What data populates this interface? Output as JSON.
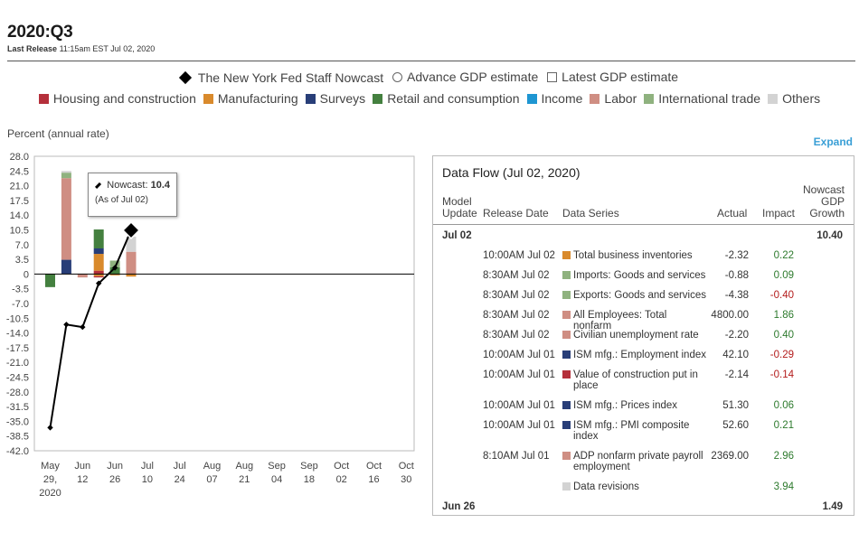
{
  "header": {
    "title": "2020:Q3",
    "release_label": "Last Release",
    "release_time": "11:15am EST Jul 02, 2020"
  },
  "legend_primary": [
    {
      "label": "The New York Fed Staff Nowcast",
      "icon": "diamond-icon"
    },
    {
      "label": "Advance GDP estimate",
      "icon": "circle-icon"
    },
    {
      "label": "Latest GDP estimate",
      "icon": "square-icon"
    }
  ],
  "legend_categories": [
    {
      "label": "Housing and construction",
      "color": "#b5303b"
    },
    {
      "label": "Manufacturing",
      "color": "#d98a2c"
    },
    {
      "label": "Surveys",
      "color": "#283e78"
    },
    {
      "label": "Retail and consumption",
      "color": "#44803f"
    },
    {
      "label": "Income",
      "color": "#1e96d2"
    },
    {
      "label": "Labor",
      "color": "#cf8e83"
    },
    {
      "label": "International trade",
      "color": "#8fb27f"
    },
    {
      "label": "Others",
      "color": "#d3d3d3"
    }
  ],
  "y_axis_label": "Percent (annual rate)",
  "expand_label": "Expand",
  "tooltip": {
    "label": "Nowcast:",
    "value": "10.4",
    "as_of": "(As of Jul 02)"
  },
  "chart_data": {
    "type": "bar",
    "title": "",
    "ylabel": "Percent (annual rate)",
    "ylim": [
      -42,
      28
    ],
    "y_ticks": [
      "28.0",
      "24.5",
      "21.0",
      "17.5",
      "14.0",
      "10.5",
      "7.0",
      "3.5",
      "0",
      "-3.5",
      "-7.0",
      "-10.5",
      "-14.0",
      "-17.5",
      "-21.0",
      "-24.5",
      "-28.0",
      "-31.5",
      "-35.0",
      "-38.5",
      "-42.0"
    ],
    "x_ticks": [
      [
        "May",
        "29,",
        "2020"
      ],
      [
        "Jun",
        "12"
      ],
      [
        "Jun",
        "26"
      ],
      [
        "Jul",
        "10"
      ],
      [
        "Jul",
        "24"
      ],
      [
        "Aug",
        "07"
      ],
      [
        "Aug",
        "21"
      ],
      [
        "Sep",
        "04"
      ],
      [
        "Sep",
        "18"
      ],
      [
        "Oct",
        "02"
      ],
      [
        "Oct",
        "16"
      ],
      [
        "Oct",
        "30"
      ]
    ],
    "week_index_of_first_tick": 0,
    "stacked_bars": [
      {
        "week": 0,
        "segments": [
          {
            "color": "#44803f",
            "value": -3.1
          }
        ]
      },
      {
        "week": 1,
        "segments": [
          {
            "color": "#283e78",
            "value": 3.4
          },
          {
            "color": "#cf8e83",
            "value": 19.4
          },
          {
            "color": "#8fb27f",
            "value": 1.3
          },
          {
            "color": "#d3d3d3",
            "value": 0.4
          }
        ]
      },
      {
        "week": 2,
        "segments": [
          {
            "color": "#cf8e83",
            "value": -0.8
          }
        ]
      },
      {
        "week": 3,
        "segments": [
          {
            "color": "#b5303b",
            "value": 0.8
          },
          {
            "color": "#d98a2c",
            "value": 4.0
          },
          {
            "color": "#283e78",
            "value": 1.3
          },
          {
            "color": "#44803f",
            "value": 4.5
          },
          {
            "color": "#d98a2c",
            "value": -0.5
          },
          {
            "color": "#b5303b",
            "value": -0.3
          }
        ]
      },
      {
        "week": 4,
        "segments": [
          {
            "color": "#44803f",
            "value": 1.6
          },
          {
            "color": "#8fb27f",
            "value": 1.6
          },
          {
            "color": "#d98a2c",
            "value": -0.3
          }
        ]
      },
      {
        "week": 5,
        "segments": [
          {
            "color": "#cf8e83",
            "value": 5.3
          },
          {
            "color": "#d3d3d3",
            "value": 3.6
          },
          {
            "color": "#d98a2c",
            "value": -0.6
          }
        ]
      }
    ],
    "nowcast_line": {
      "name": "The New York Fed Staff Nowcast",
      "weeks": [
        0,
        1,
        2,
        3,
        4,
        5
      ],
      "values": [
        -36.5,
        -12.0,
        -12.6,
        -2.2,
        1.5,
        10.4
      ]
    }
  },
  "dataflow": {
    "title": "Data Flow (Jul 02, 2020)",
    "headers": {
      "model_update": "Model Update",
      "release_date": "Release Date",
      "data_series": "Data Series",
      "actual": "Actual",
      "impact": "Impact",
      "nowcast": "Nowcast GDP Growth"
    },
    "groups": [
      {
        "label": "Jul 02",
        "value": "10.40"
      },
      {
        "label": "Jun 26",
        "value": "1.49"
      }
    ],
    "rows": [
      {
        "date": "10:00AM Jul 02",
        "series": "Total business inventories",
        "color": "#d98a2c",
        "actual": "-2.32",
        "impact": "0.22",
        "sign": "pos"
      },
      {
        "date": "8:30AM Jul 02",
        "series": "Imports: Goods and services",
        "color": "#8fb27f",
        "actual": "-0.88",
        "impact": "0.09",
        "sign": "pos"
      },
      {
        "date": "8:30AM Jul 02",
        "series": "Exports: Goods and services",
        "color": "#8fb27f",
        "actual": "-4.38",
        "impact": "-0.40",
        "sign": "neg"
      },
      {
        "date": "8:30AM Jul 02",
        "series": "All Employees: Total nonfarm",
        "color": "#cf8e83",
        "actual": "4800.00",
        "impact": "1.86",
        "sign": "pos"
      },
      {
        "date": "8:30AM Jul 02",
        "series": "Civilian unemployment rate",
        "color": "#cf8e83",
        "actual": "-2.20",
        "impact": "0.40",
        "sign": "pos"
      },
      {
        "date": "10:00AM Jul 01",
        "series": "ISM mfg.: Employment index",
        "color": "#283e78",
        "actual": "42.10",
        "impact": "-0.29",
        "sign": "neg"
      },
      {
        "date": "10:00AM Jul 01",
        "series": "Value of construction put in place",
        "color": "#b5303b",
        "actual": "-2.14",
        "impact": "-0.14",
        "sign": "neg"
      },
      {
        "date": "10:00AM Jul 01",
        "series": "ISM mfg.: Prices index",
        "color": "#283e78",
        "actual": "51.30",
        "impact": "0.06",
        "sign": "pos"
      },
      {
        "date": "10:00AM Jul 01",
        "series": "ISM mfg.: PMI composite index",
        "color": "#283e78",
        "actual": "52.60",
        "impact": "0.21",
        "sign": "pos"
      },
      {
        "date": "8:10AM Jul 01",
        "series": "ADP nonfarm private payroll employment",
        "color": "#cf8e83",
        "actual": "2369.00",
        "impact": "2.96",
        "sign": "pos"
      },
      {
        "date": "",
        "series": "Data revisions",
        "color": "#d3d3d3",
        "actual": "",
        "impact": "3.94",
        "sign": "pos"
      }
    ]
  }
}
